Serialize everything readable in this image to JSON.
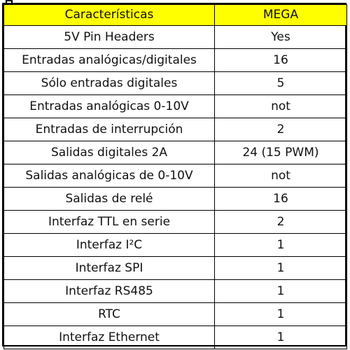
{
  "table": {
    "header": {
      "feature": "Características",
      "model": "MEGA"
    },
    "rows": [
      {
        "feature": "5V Pin Headers",
        "value": "Yes"
      },
      {
        "feature": "Entradas analógicas/digitales",
        "value": "16"
      },
      {
        "feature": "Sólo entradas digitales",
        "value": "5"
      },
      {
        "feature": "Entradas analógicas 0-10V",
        "value": "not"
      },
      {
        "feature": "Entradas de interrupción",
        "value": "2"
      },
      {
        "feature": "Salidas digitales 2A",
        "value": "24 (15 PWM)"
      },
      {
        "feature": "Salidas analógicas de 0-10V",
        "value": "not"
      },
      {
        "feature": "Salidas de relé",
        "value": "16"
      },
      {
        "feature": "Interfaz TTL en serie",
        "value": "2"
      },
      {
        "feature": "Interfaz I²C",
        "value": "1"
      },
      {
        "feature": "Interfaz SPI",
        "value": "1"
      },
      {
        "feature": "Interfaz RS485",
        "value": "1"
      },
      {
        "feature": "RTC",
        "value": "1"
      },
      {
        "feature": "Interfaz Ethernet",
        "value": "1"
      }
    ]
  },
  "colors": {
    "header_background": "#ffff00",
    "border": "#000000",
    "text": "#111111"
  }
}
